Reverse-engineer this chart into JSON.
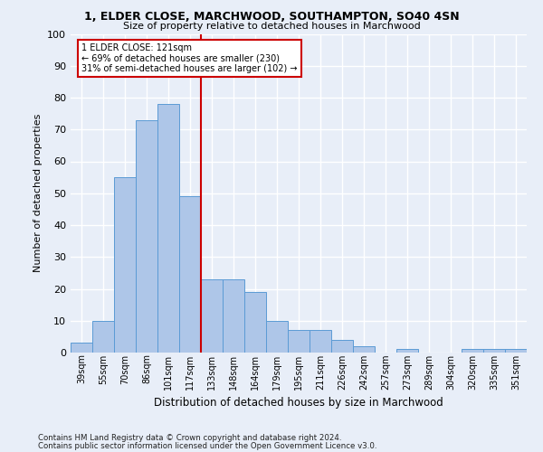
{
  "title_line1": "1, ELDER CLOSE, MARCHWOOD, SOUTHAMPTON, SO40 4SN",
  "title_line2": "Size of property relative to detached houses in Marchwood",
  "xlabel": "Distribution of detached houses by size in Marchwood",
  "ylabel": "Number of detached properties",
  "categories": [
    "39sqm",
    "55sqm",
    "70sqm",
    "86sqm",
    "101sqm",
    "117sqm",
    "133sqm",
    "148sqm",
    "164sqm",
    "179sqm",
    "195sqm",
    "211sqm",
    "226sqm",
    "242sqm",
    "257sqm",
    "273sqm",
    "289sqm",
    "304sqm",
    "320sqm",
    "335sqm",
    "351sqm"
  ],
  "values": [
    3,
    10,
    55,
    73,
    78,
    49,
    23,
    23,
    19,
    10,
    7,
    7,
    4,
    2,
    0,
    1,
    0,
    0,
    1,
    1,
    1
  ],
  "bar_color": "#aec6e8",
  "bar_edge_color": "#5b9bd5",
  "vline_x": 5.5,
  "vline_color": "#cc0000",
  "annotation_line1": "1 ELDER CLOSE: 121sqm",
  "annotation_line2": "← 69% of detached houses are smaller (230)",
  "annotation_line3": "31% of semi-detached houses are larger (102) →",
  "annotation_box_color": "#ffffff",
  "annotation_box_edge": "#cc0000",
  "ylim": [
    0,
    100
  ],
  "yticks": [
    0,
    10,
    20,
    30,
    40,
    50,
    60,
    70,
    80,
    90,
    100
  ],
  "background_color": "#e8eef8",
  "grid_color": "#ffffff",
  "footer_line1": "Contains HM Land Registry data © Crown copyright and database right 2024.",
  "footer_line2": "Contains public sector information licensed under the Open Government Licence v3.0."
}
